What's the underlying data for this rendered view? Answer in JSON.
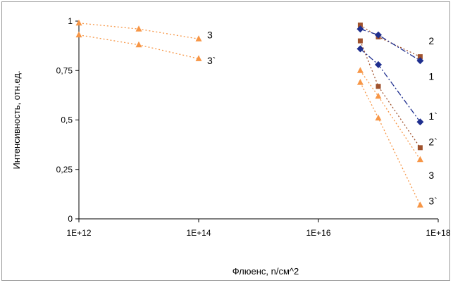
{
  "chart_data": {
    "type": "scatter",
    "title": "",
    "xlabel": "Флюенс, n/см^2",
    "ylabel": "Интенсивность, отн.ед.",
    "x_scale": "log",
    "xlim": [
      1000000000000.0,
      1e+18
    ],
    "ylim": [
      0,
      1
    ],
    "x_ticks": [
      {
        "value": 1000000000000.0,
        "label": "1E+12"
      },
      {
        "value": 100000000000000.0,
        "label": "1E+14"
      },
      {
        "value": 1e+16,
        "label": "1E+16"
      },
      {
        "value": 1e+18,
        "label": "1E+18"
      }
    ],
    "y_ticks": [
      {
        "value": 0,
        "label": "0"
      },
      {
        "value": 0.25,
        "label": "0,25"
      },
      {
        "value": 0.5,
        "label": "0,5"
      },
      {
        "value": 0.75,
        "label": "0,75"
      },
      {
        "value": 1,
        "label": "1"
      }
    ],
    "grid": false,
    "legend": "none",
    "series": [
      {
        "label": "3",
        "color": "#f79646",
        "marker": "triangle",
        "dash": "2,3",
        "x": [
          1000000000000.0,
          10000000000000.0,
          100000000000000.0
        ],
        "y": [
          0.99,
          0.96,
          0.91
        ],
        "label_at": {
          "x": 100000000000000.0,
          "y": 0.93
        }
      },
      {
        "label": "3`",
        "color": "#f79646",
        "marker": "triangle",
        "dash": "2,3",
        "x": [
          1000000000000.0,
          10000000000000.0,
          100000000000000.0
        ],
        "y": [
          0.93,
          0.88,
          0.81
        ],
        "label_at": {
          "x": 100000000000000.0,
          "y": 0.8
        }
      },
      {
        "label": "2",
        "color": "#a0522d",
        "marker": "square",
        "dash": "2,3",
        "x": [
          5e+16,
          1e+17,
          5e+17
        ],
        "y": [
          0.98,
          0.92,
          0.82
        ],
        "label_at": {
          "x": 5e+17,
          "y": 0.9
        }
      },
      {
        "label": "1",
        "color": "#1f2f8f",
        "marker": "diamond",
        "dash": "8,3,2,3",
        "x": [
          5e+16,
          1e+17,
          5e+17
        ],
        "y": [
          0.96,
          0.93,
          0.8
        ],
        "label_at": {
          "x": 5e+17,
          "y": 0.72
        }
      },
      {
        "label": "1`",
        "color": "#1f2f8f",
        "marker": "diamond",
        "dash": "8,3,2,3",
        "x": [
          5e+16,
          1e+17,
          5e+17
        ],
        "y": [
          0.86,
          0.78,
          0.49
        ],
        "label_at": {
          "x": 5e+17,
          "y": 0.52
        }
      },
      {
        "label": "2`",
        "color": "#a0522d",
        "marker": "square",
        "dash": "2,3",
        "x": [
          5e+16,
          1e+17,
          5e+17
        ],
        "y": [
          0.9,
          0.67,
          0.36
        ],
        "label_at": {
          "x": 5e+17,
          "y": 0.39
        }
      },
      {
        "label": "3",
        "color": "#f79646",
        "marker": "triangle",
        "dash": "2,3",
        "x": [
          5e+16,
          1e+17,
          5e+17
        ],
        "y": [
          0.75,
          0.62,
          0.3
        ],
        "label_at": {
          "x": 5e+17,
          "y": 0.22
        }
      },
      {
        "label": "3`",
        "color": "#f79646",
        "marker": "triangle",
        "dash": "2,3",
        "x": [
          5e+16,
          1e+17,
          5e+17
        ],
        "y": [
          0.69,
          0.51,
          0.07
        ],
        "label_at": {
          "x": 5e+17,
          "y": 0.09
        }
      }
    ]
  }
}
